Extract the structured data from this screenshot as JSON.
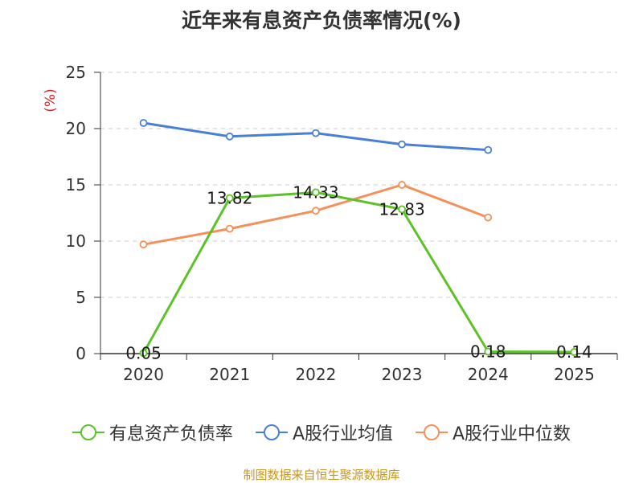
{
  "chart_data": {
    "type": "line",
    "title": "近年来有息资产负债率情况(%)",
    "ylabel": "(%)",
    "xlabel": "",
    "categories": [
      "2020",
      "2021",
      "2022",
      "2023",
      "2024",
      "2025"
    ],
    "ylim": [
      0,
      25
    ],
    "yticks": [
      0,
      5,
      10,
      15,
      20,
      25
    ],
    "grid": true,
    "legend_position": "bottom",
    "series": [
      {
        "name": "有息资产负债率",
        "color": "#5cc228",
        "values": [
          0.05,
          13.82,
          14.33,
          12.83,
          0.18,
          0.14
        ],
        "data_labels": [
          "0.05",
          "13.82",
          "14.33",
          "12.83",
          "0.18",
          "0.14"
        ]
      },
      {
        "name": "A股行业均值",
        "color": "#4a7fd6",
        "values": [
          20.5,
          19.3,
          19.6,
          18.6,
          18.1,
          null
        ]
      },
      {
        "name": "A股行业中位数",
        "color": "#f5905a",
        "values": [
          9.7,
          11.1,
          12.7,
          15.0,
          12.1,
          null
        ]
      }
    ]
  },
  "source_note": "制图数据来自恒生聚源数据库"
}
